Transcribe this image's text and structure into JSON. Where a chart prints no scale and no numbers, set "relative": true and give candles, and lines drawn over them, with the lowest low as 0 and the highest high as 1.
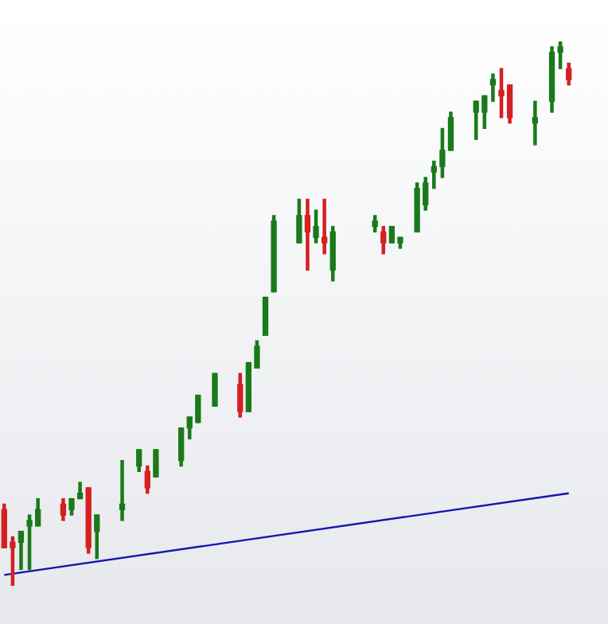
{
  "chart_data": {
    "type": "candlestick",
    "relative": true,
    "legend": false,
    "tick_labels": false,
    "categories": [
      null,
      null,
      null,
      null,
      null,
      null,
      null,
      null,
      null,
      null,
      null,
      null,
      null,
      null,
      null,
      null,
      null,
      null,
      null,
      null,
      null,
      null,
      null,
      null,
      null,
      null,
      null,
      null,
      null,
      null,
      null,
      null,
      null,
      null,
      null,
      null,
      null,
      null,
      null,
      null,
      null,
      null,
      null,
      null,
      null,
      null,
      null,
      null,
      null,
      null,
      null,
      null,
      null,
      null,
      null,
      null,
      null,
      null,
      null,
      null,
      null,
      null,
      null,
      null,
      null,
      null,
      null,
      null
    ],
    "ohlc": [
      [
        0.14,
        0.15,
        0.07,
        0.07
      ],
      [
        0.08,
        0.09,
        0,
        0.07
      ],
      [
        0.08,
        0.1,
        0.03,
        0.1
      ],
      [
        0.11,
        0.13,
        0.03,
        0.12
      ],
      [
        0.11,
        0.16,
        0.11,
        0.14
      ],
      null,
      null,
      [
        0.15,
        0.16,
        0.12,
        0.13
      ],
      [
        0.14,
        0.16,
        0.13,
        0.16
      ],
      [
        0.16,
        0.19,
        0.16,
        0.17
      ],
      [
        0.18,
        0.18,
        0.06,
        0.07
      ],
      [
        0.1,
        0.13,
        0.05,
        0.13
      ],
      null,
      null,
      [
        0.14,
        0.23,
        0.12,
        0.15
      ],
      null,
      [
        0.22,
        0.25,
        0.21,
        0.25
      ],
      [
        0.21,
        0.22,
        0.17,
        0.18
      ],
      [
        0.2,
        0.25,
        0.2,
        0.25
      ],
      null,
      null,
      [
        0.23,
        0.29,
        0.22,
        0.29
      ],
      [
        0.29,
        0.31,
        0.27,
        0.31
      ],
      [
        0.3,
        0.35,
        0.3,
        0.35
      ],
      null,
      [
        0.33,
        0.39,
        0.33,
        0.39
      ],
      null,
      null,
      [
        0.37,
        0.39,
        0.31,
        0.32
      ],
      [
        0.32,
        0.41,
        0.32,
        0.41
      ],
      [
        0.4,
        0.45,
        0.4,
        0.44
      ],
      [
        0.46,
        0.53,
        0.46,
        0.53
      ],
      [
        0.54,
        0.68,
        0.54,
        0.67
      ],
      null,
      null,
      [
        0.63,
        0.71,
        0.63,
        0.68
      ],
      [
        0.68,
        0.71,
        0.58,
        0.65
      ],
      [
        0.64,
        0.69,
        0.63,
        0.66
      ],
      [
        0.64,
        0.71,
        0.61,
        0.63
      ],
      [
        0.58,
        0.66,
        0.56,
        0.65
      ],
      null,
      null,
      null,
      null,
      [
        0.66,
        0.68,
        0.65,
        0.67
      ],
      [
        0.65,
        0.66,
        0.61,
        0.63
      ],
      [
        0.63,
        0.66,
        0.63,
        0.66
      ],
      [
        0.63,
        0.64,
        0.62,
        0.64
      ],
      null,
      [
        0.65,
        0.74,
        0.65,
        0.73
      ],
      [
        0.7,
        0.75,
        0.69,
        0.74
      ],
      [
        0.76,
        0.78,
        0.73,
        0.77
      ],
      [
        0.77,
        0.84,
        0.75,
        0.8
      ],
      [
        0.8,
        0.87,
        0.8,
        0.86
      ],
      null,
      null,
      [
        0.87,
        0.89,
        0.82,
        0.89
      ],
      [
        0.87,
        0.9,
        0.84,
        0.9
      ],
      [
        0.92,
        0.94,
        0.89,
        0.93
      ],
      [
        0.91,
        0.95,
        0.86,
        0.9
      ],
      [
        0.92,
        0.92,
        0.85,
        0.86
      ],
      null,
      null,
      [
        0.85,
        0.89,
        0.81,
        0.86
      ],
      null,
      [
        0.89,
        0.99,
        0.87,
        0.98
      ],
      [
        0.98,
        1,
        0.95,
        0.99
      ],
      [
        0.95,
        0.96,
        0.92,
        0.93
      ]
    ],
    "colors": [
      "#d42020",
      "#d42020",
      "#1a7a1a",
      "#1a7a1a",
      "#1a7a1a",
      null,
      null,
      "#d42020",
      "#1a7a1a",
      "#1a7a1a",
      "#d42020",
      "#1a7a1a",
      null,
      null,
      "#1a7a1a",
      null,
      "#1a7a1a",
      "#d42020",
      "#1a7a1a",
      null,
      null,
      "#1a7a1a",
      "#1a7a1a",
      "#1a7a1a",
      null,
      "#1a7a1a",
      null,
      null,
      "#d42020",
      "#1a7a1a",
      "#1a7a1a",
      "#1a7a1a",
      "#1a7a1a",
      null,
      null,
      "#1a7a1a",
      "#d42020",
      "#1a7a1a",
      "#d42020",
      "#1a7a1a",
      null,
      null,
      null,
      null,
      "#1a7a1a",
      "#d42020",
      "#1a7a1a",
      "#1a7a1a",
      null,
      "#1a7a1a",
      "#1a7a1a",
      "#1a7a1a",
      "#1a7a1a",
      "#1a7a1a",
      null,
      null,
      "#1a7a1a",
      "#1a7a1a",
      "#1a7a1a",
      "#d42020",
      "#d42020",
      null,
      null,
      "#1a7a1a",
      null,
      "#1a7a1a",
      "#1a7a1a",
      "#d42020"
    ],
    "series": [
      {
        "type": "line",
        "color": "#1414b4",
        "values": [
          0.02,
          null,
          null,
          null,
          null,
          null,
          null,
          null,
          null,
          null,
          null,
          null,
          null,
          null,
          null,
          null,
          null,
          null,
          null,
          null,
          null,
          null,
          null,
          null,
          null,
          null,
          null,
          null,
          null,
          null,
          null,
          null,
          null,
          null,
          null,
          null,
          null,
          null,
          null,
          null,
          null,
          null,
          null,
          null,
          null,
          null,
          null,
          null,
          null,
          null,
          null,
          null,
          null,
          null,
          null,
          null,
          null,
          null,
          null,
          null,
          null,
          null,
          null,
          null,
          null,
          null,
          null,
          0.17
        ]
      }
    ]
  }
}
